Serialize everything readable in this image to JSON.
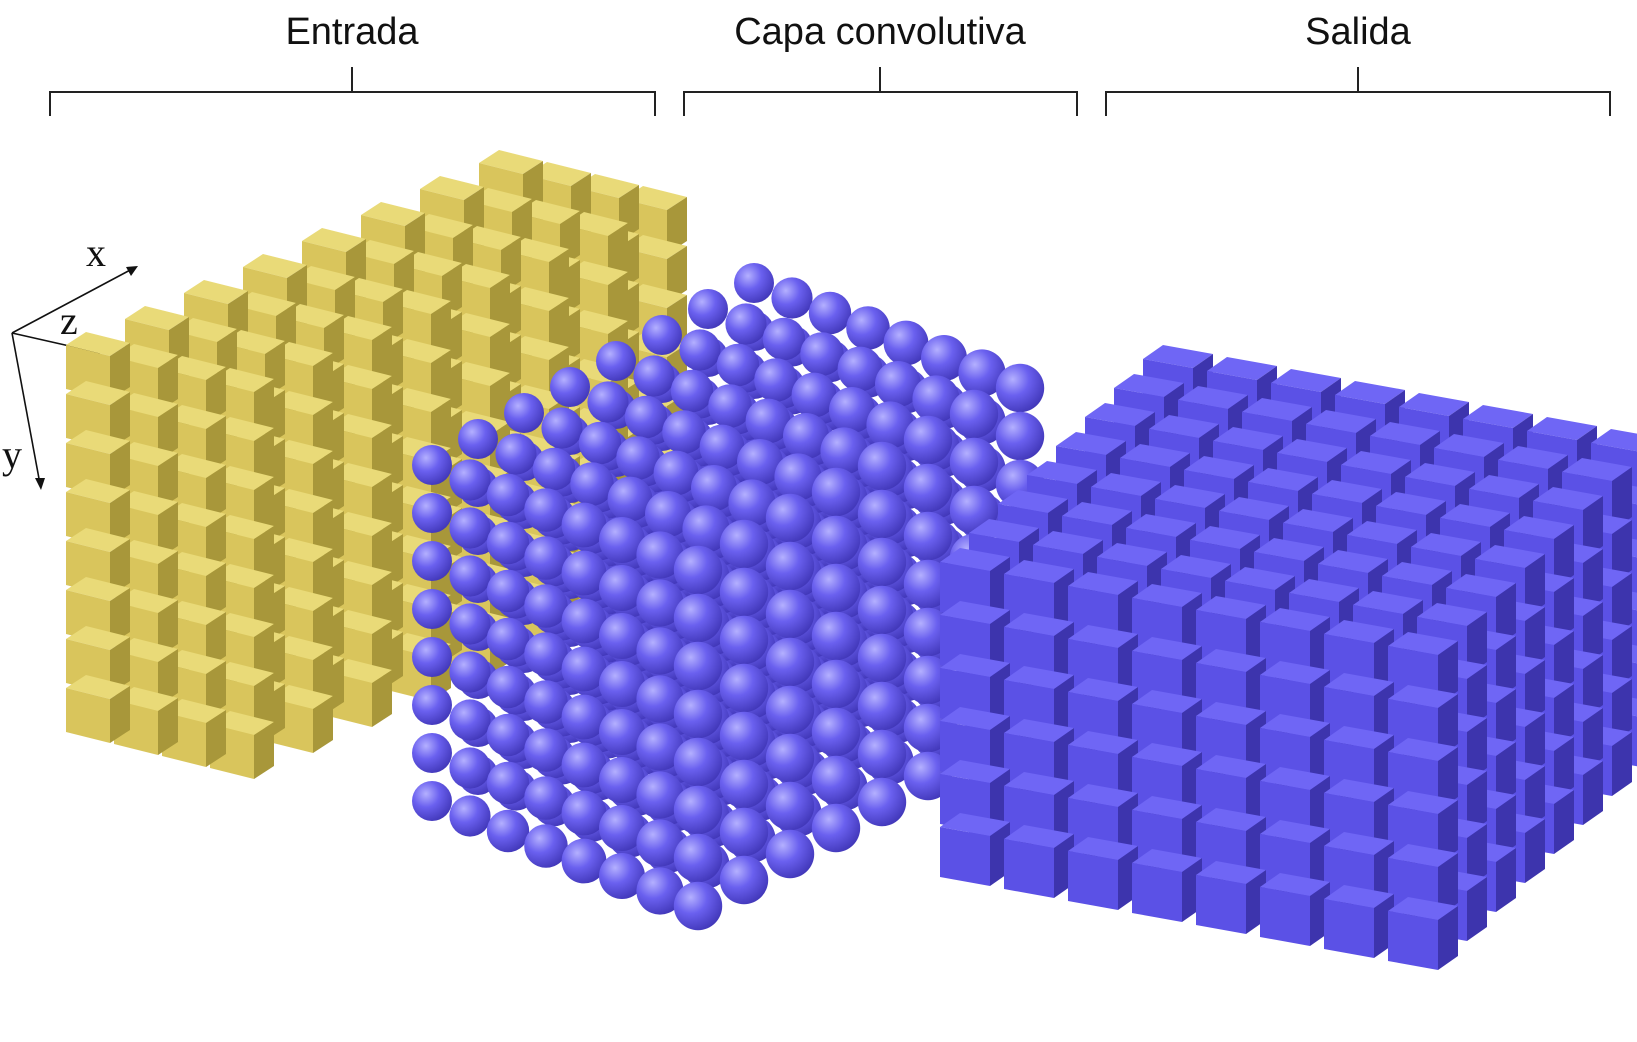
{
  "sections": [
    {
      "key": "input",
      "label": "Entrada"
    },
    {
      "key": "conv",
      "label": "Capa convolutiva"
    },
    {
      "key": "output",
      "label": "Salida"
    }
  ],
  "axes": {
    "x": "x",
    "z": "z",
    "y": "y"
  },
  "colors": {
    "input_top": "#e9da78",
    "input_front": "#d9c55c",
    "input_side": "#a8973a",
    "sphere_light": "#b4b0ff",
    "sphere_mid": "#6a60ef",
    "sphere_dark": "#3f35b6",
    "output_top": "#6f66f5",
    "output_front": "#5b51e6",
    "output_side": "#3d34ad"
  },
  "grids": {
    "input": {
      "x": 8,
      "y": 8,
      "z": 4
    },
    "conv": {
      "x": 8,
      "y": 8,
      "z": 8
    },
    "output": {
      "x": 8,
      "y": 6,
      "z": 8
    }
  }
}
